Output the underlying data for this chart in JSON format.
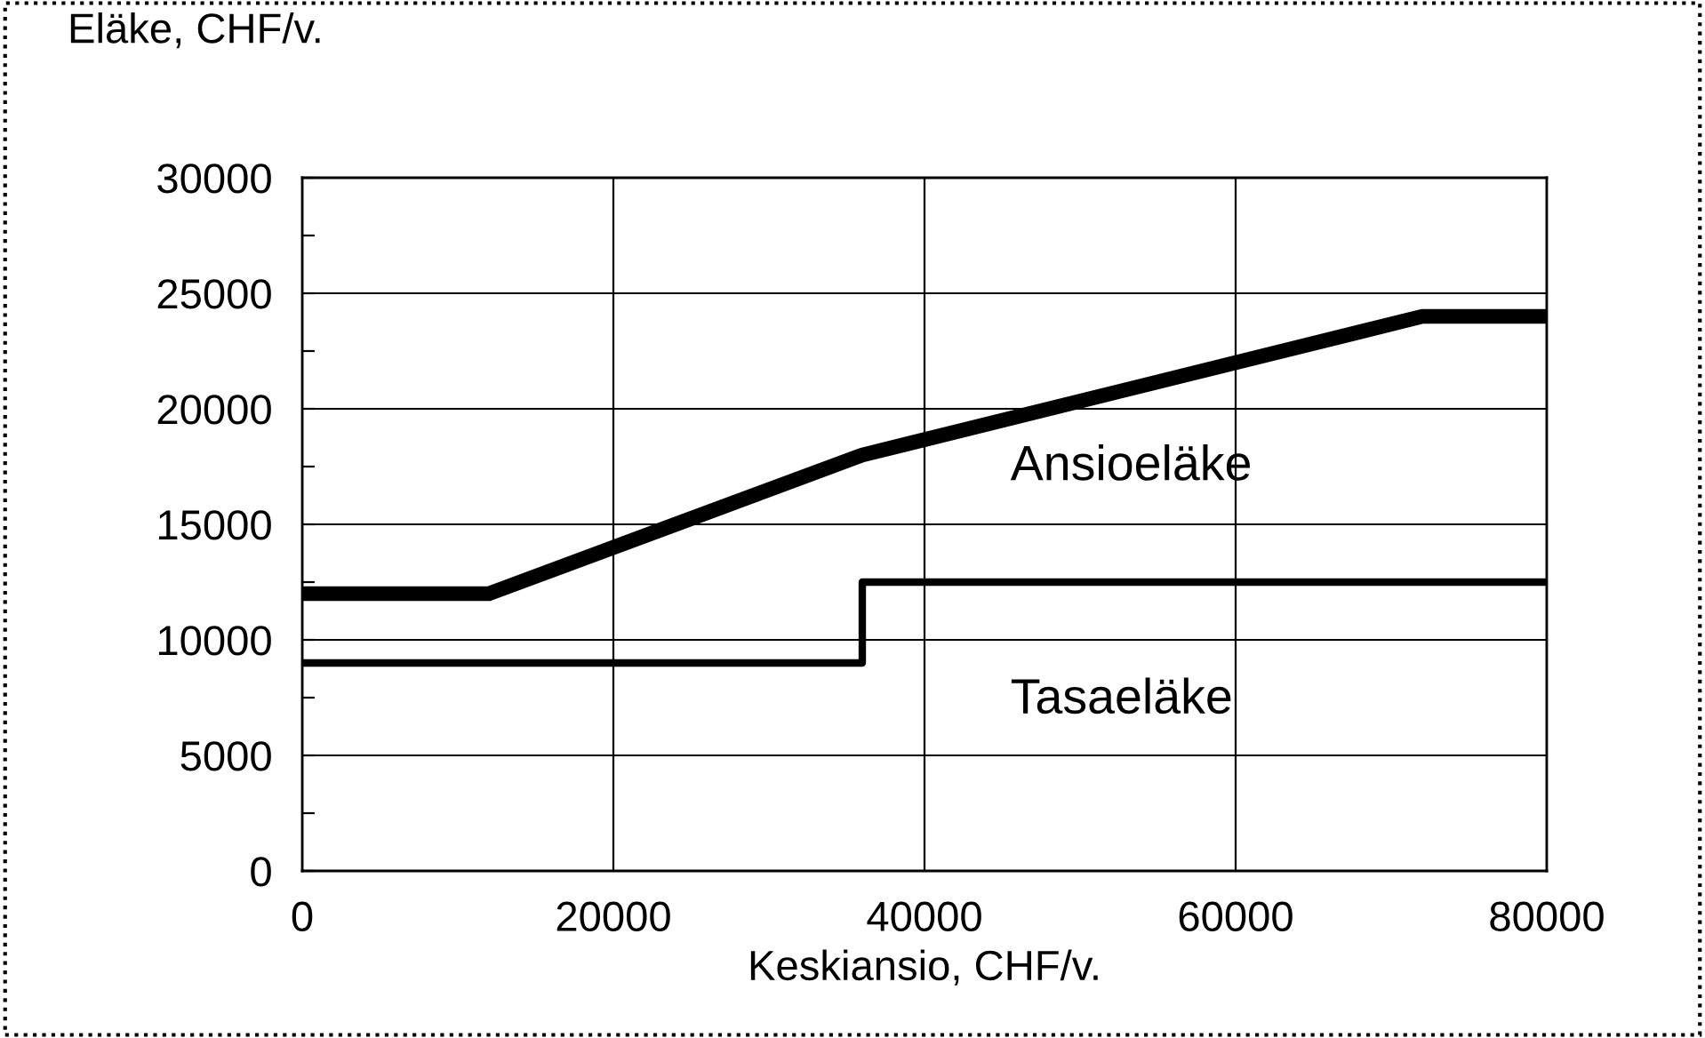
{
  "chart_data": {
    "type": "line",
    "xlabel": "Keskiansio, CHF/v.",
    "ylabel": "Eläke, CHF/v.",
    "series": [
      {
        "name": "Ansioeläke",
        "color": "#000000",
        "x": [
          0,
          12000,
          36000,
          72000,
          80000
        ],
        "values": [
          12000,
          12000,
          18000,
          24000,
          24000
        ]
      },
      {
        "name": "Tasaeläke",
        "color": "#000000",
        "x": [
          0,
          36000,
          36000,
          80000
        ],
        "values": [
          9000,
          9000,
          12500,
          12500
        ]
      }
    ],
    "xlim": [
      0,
      80000
    ],
    "xticks": [
      0,
      20000,
      40000,
      60000,
      80000
    ],
    "ylim": [
      0,
      30000
    ],
    "yticks": [
      0,
      {
        "value": 2500,
        "label": null
      },
      5000,
      {
        "value": 7500,
        "label": null
      },
      10000,
      {
        "value": 12500,
        "label": null
      },
      15000,
      {
        "value": 17500,
        "label": null
      },
      20000,
      {
        "value": 22500,
        "label": null
      },
      25000,
      {
        "value": 27500,
        "label": null
      },
      30000
    ],
    "grid": true,
    "legend": false,
    "marker": "none",
    "line_style": "solid"
  }
}
